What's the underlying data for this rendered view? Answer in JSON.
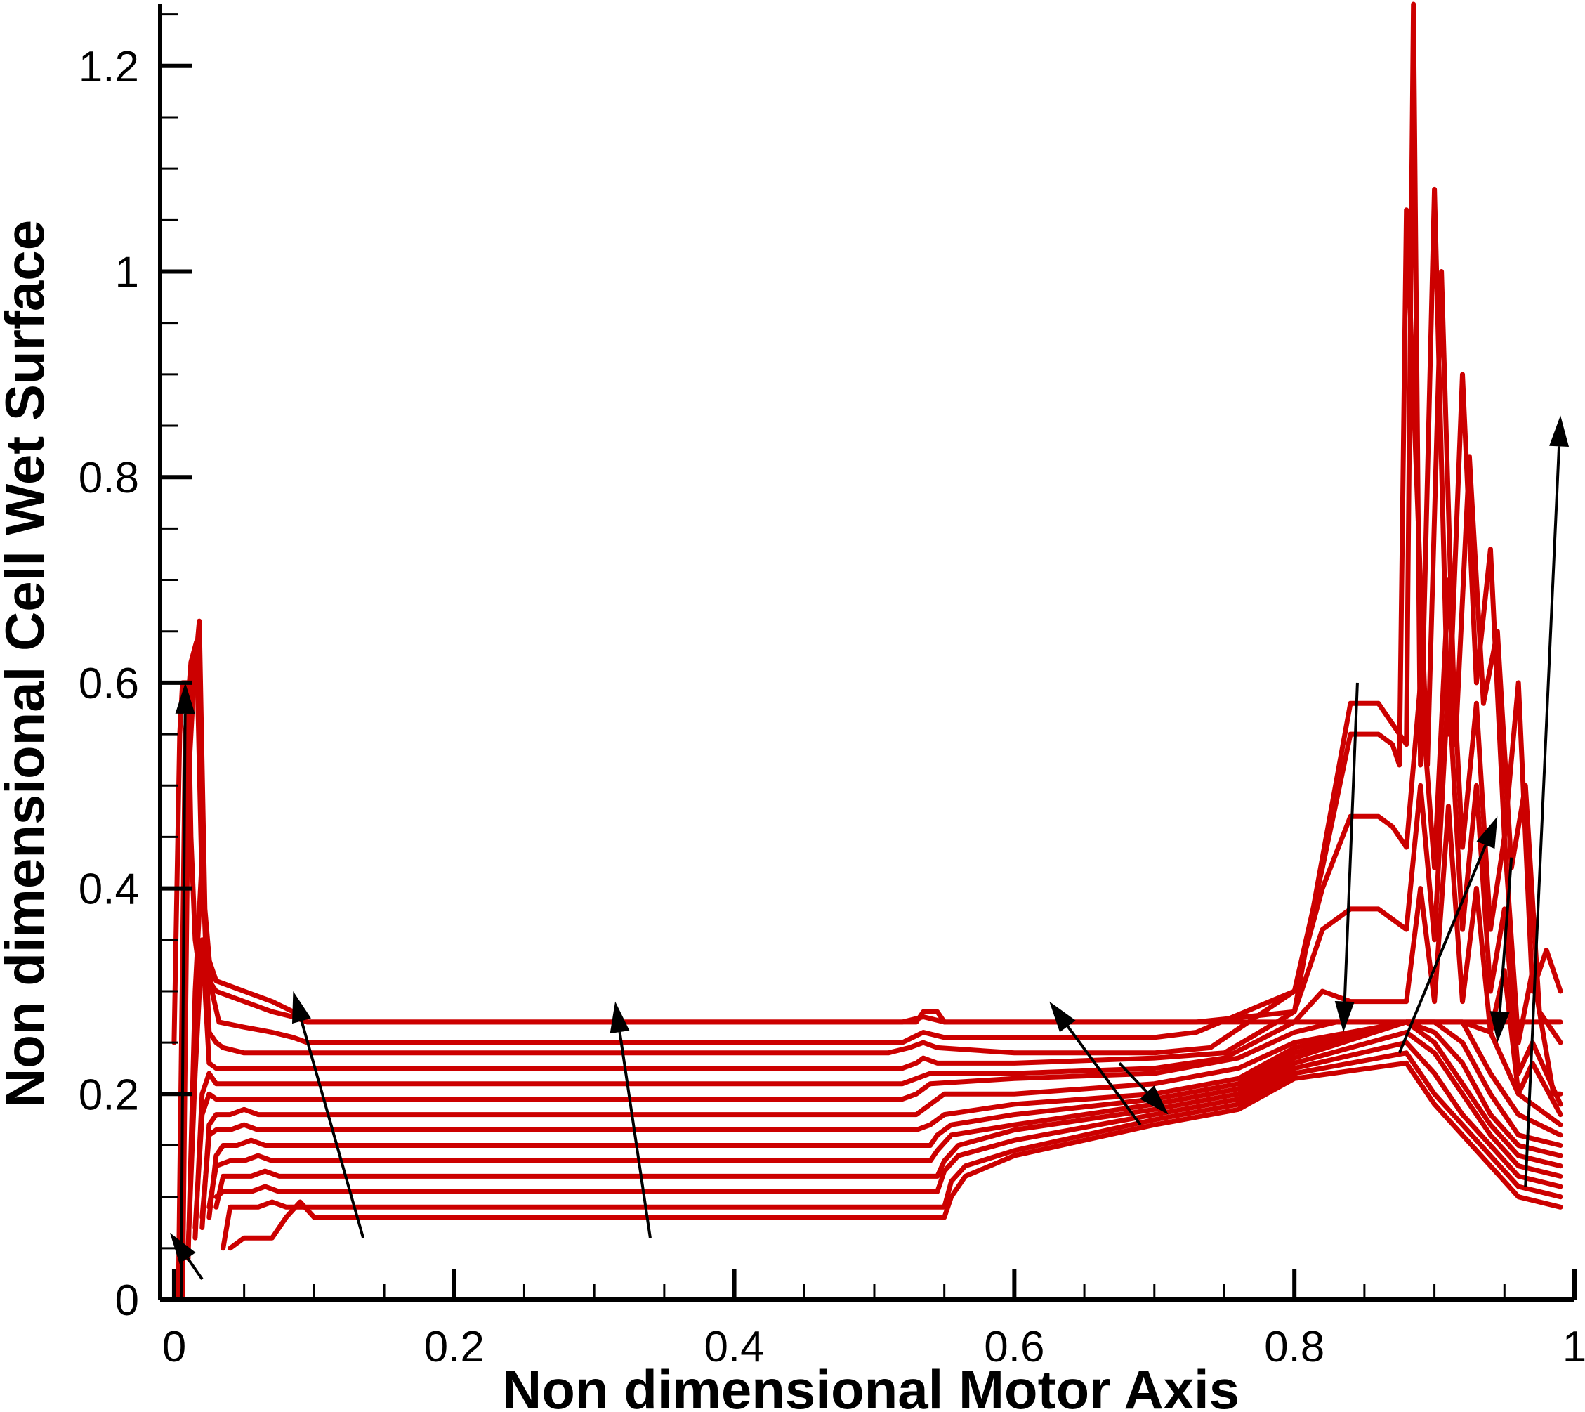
{
  "chart_data": {
    "type": "line",
    "title": "",
    "xlabel": "Non dimensional Motor Axis",
    "ylabel": "Non dimensional Cell Wet Surface",
    "xlim": [
      -0.01,
      1.0
    ],
    "ylim": [
      0,
      1.26
    ],
    "x_ticks": [
      "0",
      "0.2",
      "0.4",
      "0.6",
      "0.8",
      "1"
    ],
    "x_tick_values": [
      0,
      0.2,
      0.4,
      0.6,
      0.8,
      1.0
    ],
    "y_ticks": [
      "0",
      "0.2",
      "0.4",
      "0.6",
      "0.8",
      "1",
      "1.2"
    ],
    "y_tick_values": [
      0,
      0.2,
      0.4,
      0.6,
      0.8,
      1.0,
      1.2
    ],
    "grid": false,
    "legend": "none",
    "line_color": "#cc0000",
    "arrow_color": "#000000",
    "series": [
      {
        "x": [
          0.0,
          0.004,
          0.006,
          0.01,
          0.012,
          0.015,
          0.017,
          0.02,
          0.025,
          0.03,
          0.05,
          0.07,
          0.085,
          0.095,
          0.11,
          0.2,
          0.4,
          0.53,
          0.535,
          0.545,
          0.55,
          0.6,
          0.65,
          0.7,
          0.73,
          0.8,
          0.86,
          0.88,
          0.89,
          0.9,
          0.91,
          0.92,
          0.94,
          0.97,
          0.99
        ],
        "y": [
          0.25,
          0.55,
          0.6,
          0.6,
          0.45,
          0.35,
          0.33,
          0.32,
          0.31,
          0.3,
          0.29,
          0.28,
          0.275,
          0.27,
          0.27,
          0.27,
          0.27,
          0.27,
          0.28,
          0.28,
          0.27,
          0.27,
          0.27,
          0.27,
          0.27,
          0.27,
          0.27,
          0.27,
          0.27,
          0.27,
          0.27,
          0.27,
          0.27,
          0.27,
          0.27
        ]
      },
      {
        "x": [
          0.003,
          0.008,
          0.012,
          0.016,
          0.02,
          0.025,
          0.03,
          0.05,
          0.07,
          0.085,
          0.095,
          0.11,
          0.2,
          0.4,
          0.52,
          0.535,
          0.55,
          0.6,
          0.7,
          0.73,
          0.8,
          0.82,
          0.84,
          0.86,
          0.87,
          0.88,
          0.885,
          0.89,
          0.9,
          0.91,
          0.92,
          0.93,
          0.94,
          0.95,
          0.96,
          0.97,
          0.98,
          0.99
        ],
        "y": [
          0.0,
          0.55,
          0.62,
          0.64,
          0.4,
          0.33,
          0.31,
          0.3,
          0.29,
          0.28,
          0.27,
          0.27,
          0.27,
          0.27,
          0.27,
          0.275,
          0.27,
          0.27,
          0.27,
          0.27,
          0.28,
          0.43,
          0.58,
          0.58,
          0.56,
          0.54,
          1.26,
          0.52,
          1.08,
          0.55,
          0.9,
          0.6,
          0.73,
          0.45,
          0.6,
          0.3,
          0.34,
          0.3
        ]
      },
      {
        "x": [
          0.006,
          0.01,
          0.014,
          0.018,
          0.022,
          0.027,
          0.032,
          0.05,
          0.07,
          0.085,
          0.095,
          0.11,
          0.2,
          0.4,
          0.52,
          0.535,
          0.55,
          0.6,
          0.7,
          0.73,
          0.8,
          0.82,
          0.84,
          0.86,
          0.87,
          0.875,
          0.88,
          0.895,
          0.905,
          0.915,
          0.925,
          0.935,
          0.945,
          0.955,
          0.965,
          0.975,
          0.99
        ],
        "y": [
          0.0,
          0.5,
          0.6,
          0.66,
          0.38,
          0.3,
          0.27,
          0.265,
          0.26,
          0.255,
          0.25,
          0.25,
          0.25,
          0.25,
          0.25,
          0.26,
          0.255,
          0.255,
          0.255,
          0.26,
          0.3,
          0.42,
          0.55,
          0.55,
          0.54,
          0.52,
          1.06,
          0.52,
          1.0,
          0.54,
          0.82,
          0.58,
          0.65,
          0.42,
          0.5,
          0.28,
          0.25
        ]
      },
      {
        "x": [
          0.01,
          0.015,
          0.02,
          0.025,
          0.03,
          0.035,
          0.05,
          0.07,
          0.09,
          0.11,
          0.2,
          0.4,
          0.51,
          0.525,
          0.535,
          0.545,
          0.6,
          0.7,
          0.74,
          0.8,
          0.82,
          0.84,
          0.86,
          0.87,
          0.88,
          0.89,
          0.9,
          0.91,
          0.92,
          0.93,
          0.94,
          0.95,
          0.96,
          0.97,
          0.985,
          0.99
        ],
        "y": [
          0.04,
          0.3,
          0.43,
          0.26,
          0.25,
          0.245,
          0.24,
          0.24,
          0.24,
          0.24,
          0.24,
          0.24,
          0.24,
          0.245,
          0.25,
          0.245,
          0.24,
          0.24,
          0.245,
          0.3,
          0.4,
          0.47,
          0.47,
          0.46,
          0.44,
          0.6,
          0.42,
          0.7,
          0.44,
          0.58,
          0.36,
          0.45,
          0.25,
          0.32,
          0.2,
          0.2
        ]
      },
      {
        "x": [
          0.01,
          0.015,
          0.02,
          0.025,
          0.03,
          0.035,
          0.05,
          0.07,
          0.09,
          0.11,
          0.2,
          0.4,
          0.52,
          0.53,
          0.535,
          0.545,
          0.6,
          0.7,
          0.75,
          0.8,
          0.82,
          0.84,
          0.86,
          0.87,
          0.88,
          0.89,
          0.9,
          0.91,
          0.92,
          0.93,
          0.94,
          0.95,
          0.96,
          0.97,
          0.99
        ],
        "y": [
          0.05,
          0.22,
          0.35,
          0.23,
          0.225,
          0.225,
          0.225,
          0.225,
          0.225,
          0.225,
          0.225,
          0.225,
          0.225,
          0.23,
          0.235,
          0.23,
          0.23,
          0.235,
          0.24,
          0.28,
          0.36,
          0.38,
          0.38,
          0.37,
          0.36,
          0.5,
          0.35,
          0.6,
          0.36,
          0.5,
          0.3,
          0.38,
          0.22,
          0.25,
          0.19
        ]
      },
      {
        "x": [
          0.015,
          0.02,
          0.025,
          0.03,
          0.035,
          0.05,
          0.07,
          0.09,
          0.11,
          0.2,
          0.4,
          0.52,
          0.53,
          0.54,
          0.6,
          0.7,
          0.75,
          0.8,
          0.82,
          0.84,
          0.86,
          0.87,
          0.88,
          0.89,
          0.9,
          0.91,
          0.92,
          0.93,
          0.94,
          0.95,
          0.96,
          0.97,
          0.99
        ],
        "y": [
          0.06,
          0.2,
          0.22,
          0.21,
          0.21,
          0.21,
          0.21,
          0.21,
          0.21,
          0.21,
          0.21,
          0.21,
          0.215,
          0.22,
          0.22,
          0.225,
          0.235,
          0.27,
          0.3,
          0.29,
          0.29,
          0.29,
          0.29,
          0.4,
          0.29,
          0.48,
          0.29,
          0.4,
          0.26,
          0.32,
          0.2,
          0.23,
          0.18
        ]
      },
      {
        "x": [
          0.015,
          0.02,
          0.025,
          0.03,
          0.04,
          0.05,
          0.06,
          0.08,
          0.1,
          0.2,
          0.4,
          0.52,
          0.53,
          0.54,
          0.6,
          0.7,
          0.76,
          0.8,
          0.83,
          0.86,
          0.88,
          0.9,
          0.92,
          0.94,
          0.96,
          0.99
        ],
        "y": [
          0.07,
          0.18,
          0.2,
          0.195,
          0.195,
          0.195,
          0.195,
          0.195,
          0.195,
          0.195,
          0.195,
          0.195,
          0.2,
          0.21,
          0.215,
          0.22,
          0.235,
          0.26,
          0.27,
          0.27,
          0.27,
          0.27,
          0.27,
          0.26,
          0.2,
          0.17
        ]
      },
      {
        "x": [
          0.02,
          0.025,
          0.03,
          0.04,
          0.05,
          0.06,
          0.08,
          0.1,
          0.2,
          0.4,
          0.53,
          0.54,
          0.55,
          0.6,
          0.7,
          0.76,
          0.8,
          0.88,
          0.9,
          0.92,
          0.94,
          0.96,
          0.99
        ],
        "y": [
          0.07,
          0.17,
          0.18,
          0.18,
          0.185,
          0.18,
          0.18,
          0.18,
          0.18,
          0.18,
          0.18,
          0.19,
          0.2,
          0.2,
          0.21,
          0.225,
          0.25,
          0.27,
          0.27,
          0.27,
          0.22,
          0.18,
          0.16
        ]
      },
      {
        "x": [
          0.02,
          0.025,
          0.03,
          0.04,
          0.05,
          0.06,
          0.08,
          0.1,
          0.2,
          0.4,
          0.53,
          0.54,
          0.55,
          0.6,
          0.7,
          0.76,
          0.8,
          0.88,
          0.9,
          0.92,
          0.94,
          0.96,
          0.99
        ],
        "y": [
          0.08,
          0.16,
          0.165,
          0.165,
          0.17,
          0.165,
          0.165,
          0.165,
          0.165,
          0.165,
          0.165,
          0.17,
          0.18,
          0.19,
          0.2,
          0.215,
          0.245,
          0.27,
          0.27,
          0.25,
          0.2,
          0.16,
          0.15
        ]
      },
      {
        "x": [
          0.025,
          0.03,
          0.035,
          0.045,
          0.055,
          0.065,
          0.08,
          0.1,
          0.2,
          0.4,
          0.54,
          0.545,
          0.555,
          0.6,
          0.7,
          0.76,
          0.8,
          0.88,
          0.9,
          0.92,
          0.94,
          0.96,
          0.99
        ],
        "y": [
          0.08,
          0.14,
          0.15,
          0.15,
          0.155,
          0.15,
          0.15,
          0.15,
          0.15,
          0.15,
          0.15,
          0.16,
          0.17,
          0.18,
          0.195,
          0.21,
          0.24,
          0.27,
          0.26,
          0.23,
          0.18,
          0.15,
          0.14
        ]
      },
      {
        "x": [
          0.025,
          0.03,
          0.04,
          0.05,
          0.06,
          0.07,
          0.08,
          0.1,
          0.2,
          0.4,
          0.54,
          0.545,
          0.555,
          0.6,
          0.7,
          0.76,
          0.8,
          0.88,
          0.9,
          0.92,
          0.94,
          0.96,
          0.99
        ],
        "y": [
          0.09,
          0.13,
          0.135,
          0.135,
          0.14,
          0.135,
          0.135,
          0.135,
          0.135,
          0.135,
          0.135,
          0.145,
          0.16,
          0.17,
          0.19,
          0.205,
          0.235,
          0.27,
          0.25,
          0.21,
          0.17,
          0.14,
          0.13
        ]
      },
      {
        "x": [
          0.03,
          0.035,
          0.045,
          0.055,
          0.065,
          0.075,
          0.085,
          0.1,
          0.2,
          0.4,
          0.545,
          0.55,
          0.56,
          0.6,
          0.7,
          0.76,
          0.8,
          0.88,
          0.9,
          0.92,
          0.94,
          0.96,
          0.99
        ],
        "y": [
          0.09,
          0.12,
          0.12,
          0.12,
          0.125,
          0.12,
          0.12,
          0.12,
          0.12,
          0.12,
          0.12,
          0.135,
          0.15,
          0.165,
          0.185,
          0.2,
          0.23,
          0.26,
          0.24,
          0.2,
          0.16,
          0.13,
          0.12
        ]
      },
      {
        "x": [
          0.03,
          0.035,
          0.045,
          0.055,
          0.065,
          0.075,
          0.085,
          0.1,
          0.2,
          0.4,
          0.545,
          0.55,
          0.56,
          0.6,
          0.7,
          0.76,
          0.8,
          0.88,
          0.9,
          0.92,
          0.94,
          0.96,
          0.99
        ],
        "y": [
          0.1,
          0.105,
          0.105,
          0.105,
          0.11,
          0.105,
          0.105,
          0.105,
          0.105,
          0.105,
          0.105,
          0.125,
          0.14,
          0.155,
          0.18,
          0.195,
          0.225,
          0.25,
          0.22,
          0.18,
          0.15,
          0.12,
          0.11
        ]
      },
      {
        "x": [
          0.035,
          0.04,
          0.05,
          0.06,
          0.07,
          0.08,
          0.09,
          0.1,
          0.2,
          0.4,
          0.55,
          0.555,
          0.565,
          0.6,
          0.7,
          0.76,
          0.8,
          0.88,
          0.9,
          0.92,
          0.94,
          0.96,
          0.99
        ],
        "y": [
          0.05,
          0.09,
          0.09,
          0.09,
          0.095,
          0.09,
          0.09,
          0.09,
          0.09,
          0.09,
          0.09,
          0.115,
          0.13,
          0.145,
          0.175,
          0.19,
          0.22,
          0.24,
          0.2,
          0.17,
          0.14,
          0.11,
          0.1
        ]
      },
      {
        "x": [
          0.04,
          0.05,
          0.06,
          0.07,
          0.08,
          0.09,
          0.1,
          0.2,
          0.4,
          0.55,
          0.555,
          0.565,
          0.6,
          0.7,
          0.76,
          0.8,
          0.88,
          0.9,
          0.92,
          0.94,
          0.96,
          0.99
        ],
        "y": [
          0.05,
          0.06,
          0.06,
          0.06,
          0.08,
          0.095,
          0.08,
          0.08,
          0.08,
          0.08,
          0.1,
          0.12,
          0.14,
          0.17,
          0.185,
          0.215,
          0.23,
          0.19,
          0.16,
          0.13,
          0.1,
          0.09
        ]
      }
    ],
    "arrows": [
      {
        "from": [
          0.02,
          0.02
        ],
        "to": [
          -0.003,
          0.065
        ]
      },
      {
        "from": [
          0.005,
          0.0
        ],
        "to": [
          0.008,
          0.6
        ]
      },
      {
        "from": [
          0.135,
          0.06
        ],
        "to": [
          0.085,
          0.3
        ]
      },
      {
        "from": [
          0.34,
          0.06
        ],
        "to": [
          0.315,
          0.29
        ]
      },
      {
        "from": [
          0.69,
          0.17
        ],
        "to": [
          0.625,
          0.29
        ]
      },
      {
        "from": [
          0.675,
          0.23
        ],
        "to": [
          0.71,
          0.18
        ]
      },
      {
        "from": [
          0.845,
          0.6
        ],
        "to": [
          0.835,
          0.26
        ]
      },
      {
        "from": [
          0.875,
          0.24
        ],
        "to": [
          0.945,
          0.47
        ]
      },
      {
        "from": [
          0.955,
          0.43
        ],
        "to": [
          0.945,
          0.25
        ]
      },
      {
        "from": [
          0.965,
          0.11
        ],
        "to": [
          0.99,
          0.86
        ]
      }
    ]
  }
}
